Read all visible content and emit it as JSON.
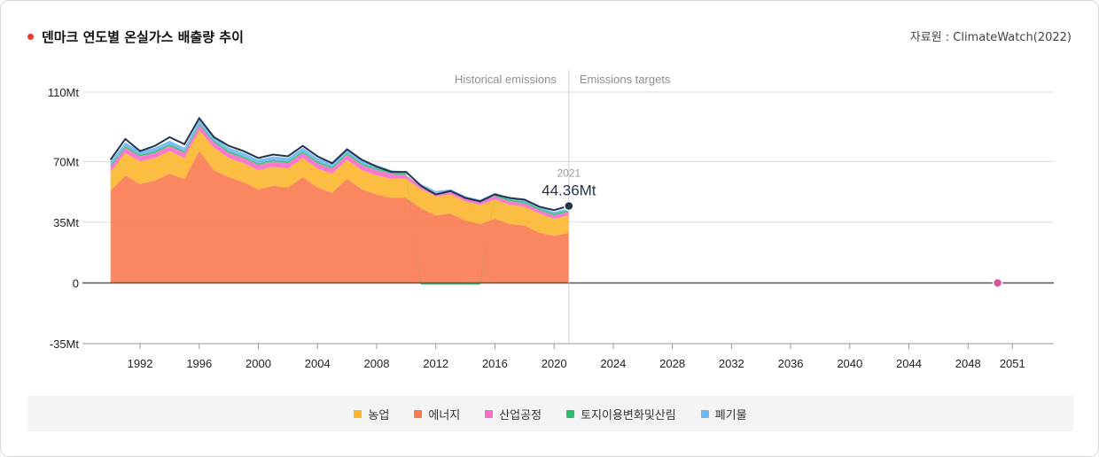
{
  "title": "덴마크 연도별 온실가스 배출량 추이",
  "source": "자료원 : ClimateWatch(2022)",
  "chart_data": {
    "type": "area",
    "section_labels": [
      "Historical emissions",
      "Emissions targets"
    ],
    "y_ticks": [
      110,
      70,
      35,
      0,
      -35
    ],
    "y_tick_labels": [
      "110Mt",
      "70Mt",
      "35Mt",
      "0",
      "-35Mt"
    ],
    "ylim": [
      -35,
      110
    ],
    "x_ticks": [
      1992,
      1996,
      2000,
      2004,
      2008,
      2012,
      2016,
      2020,
      2024,
      2028,
      2032,
      2036,
      2040,
      2044,
      2048,
      2051
    ],
    "xlim": [
      1988.1,
      2053.8
    ],
    "x": [
      1990,
      1991,
      1992,
      1993,
      1994,
      1995,
      1996,
      1997,
      1998,
      1999,
      2000,
      2001,
      2002,
      2003,
      2004,
      2005,
      2006,
      2007,
      2008,
      2009,
      2010,
      2011,
      2012,
      2013,
      2014,
      2015,
      2016,
      2017,
      2018,
      2019,
      2020,
      2021
    ],
    "series": [
      {
        "name": "에너지",
        "color": "#f97a4f",
        "values": [
          53,
          62,
          57,
          59,
          63,
          60,
          76,
          65,
          61,
          58,
          54,
          56,
          55,
          61,
          55,
          52,
          60,
          54,
          51,
          49,
          49,
          43,
          39,
          40,
          36,
          34,
          37,
          34,
          33,
          29,
          27,
          29
        ]
      },
      {
        "name": "농업",
        "color": "#fbb72e",
        "values": [
          11,
          13,
          13,
          13,
          13,
          12,
          12,
          13,
          11,
          11,
          11,
          11,
          11,
          11,
          11,
          11,
          11,
          11,
          11,
          11,
          11,
          11,
          11,
          11,
          11,
          11,
          11,
          11,
          11,
          11,
          10,
          10
        ]
      },
      {
        "name": "산업공정",
        "color": "#f76cc9",
        "values": [
          3,
          3,
          3,
          3,
          3,
          3,
          3,
          3,
          3,
          3,
          3,
          3,
          3,
          3,
          3,
          3,
          3,
          3,
          3,
          3,
          2,
          2,
          2,
          2,
          2,
          2,
          2,
          2,
          2,
          2,
          2,
          2
        ]
      },
      {
        "name": "토지이용변화및산림",
        "color": "#2bc06b",
        "values": [
          1,
          1,
          1,
          1,
          1,
          1,
          1,
          1,
          1,
          1,
          1,
          1,
          1,
          1,
          1,
          1,
          1,
          1,
          1,
          1,
          1,
          -1,
          -1,
          -1,
          -1,
          -1,
          1,
          1,
          1,
          1,
          1,
          1
        ]
      },
      {
        "name": "폐기물",
        "color": "#6fb6f2",
        "values": [
          2,
          2,
          2,
          2,
          2,
          2,
          2,
          2,
          2,
          2,
          2,
          2,
          2,
          2,
          2,
          2,
          2,
          2,
          2,
          1,
          1,
          1,
          1,
          1,
          1,
          1,
          1,
          1,
          1,
          1,
          1,
          1
        ]
      }
    ],
    "total_line": {
      "color": "#23364f",
      "values": [
        71,
        83,
        76,
        79,
        84,
        80,
        95,
        84,
        79,
        76,
        72,
        74,
        73,
        79,
        73,
        69,
        77,
        71,
        67,
        64,
        64,
        56,
        51,
        53,
        49,
        47,
        51,
        49,
        48,
        44,
        42,
        44.36
      ]
    },
    "highlight": {
      "year_label": "2021",
      "value_label": "44.36Mt",
      "x": 2021,
      "y": 44.36
    },
    "target_marker": {
      "x": 2050,
      "y": 0,
      "color": "#d9559b"
    },
    "legend_order": [
      "농업",
      "에너지",
      "산업공정",
      "토지이용변화및산림",
      "폐기물"
    ]
  }
}
